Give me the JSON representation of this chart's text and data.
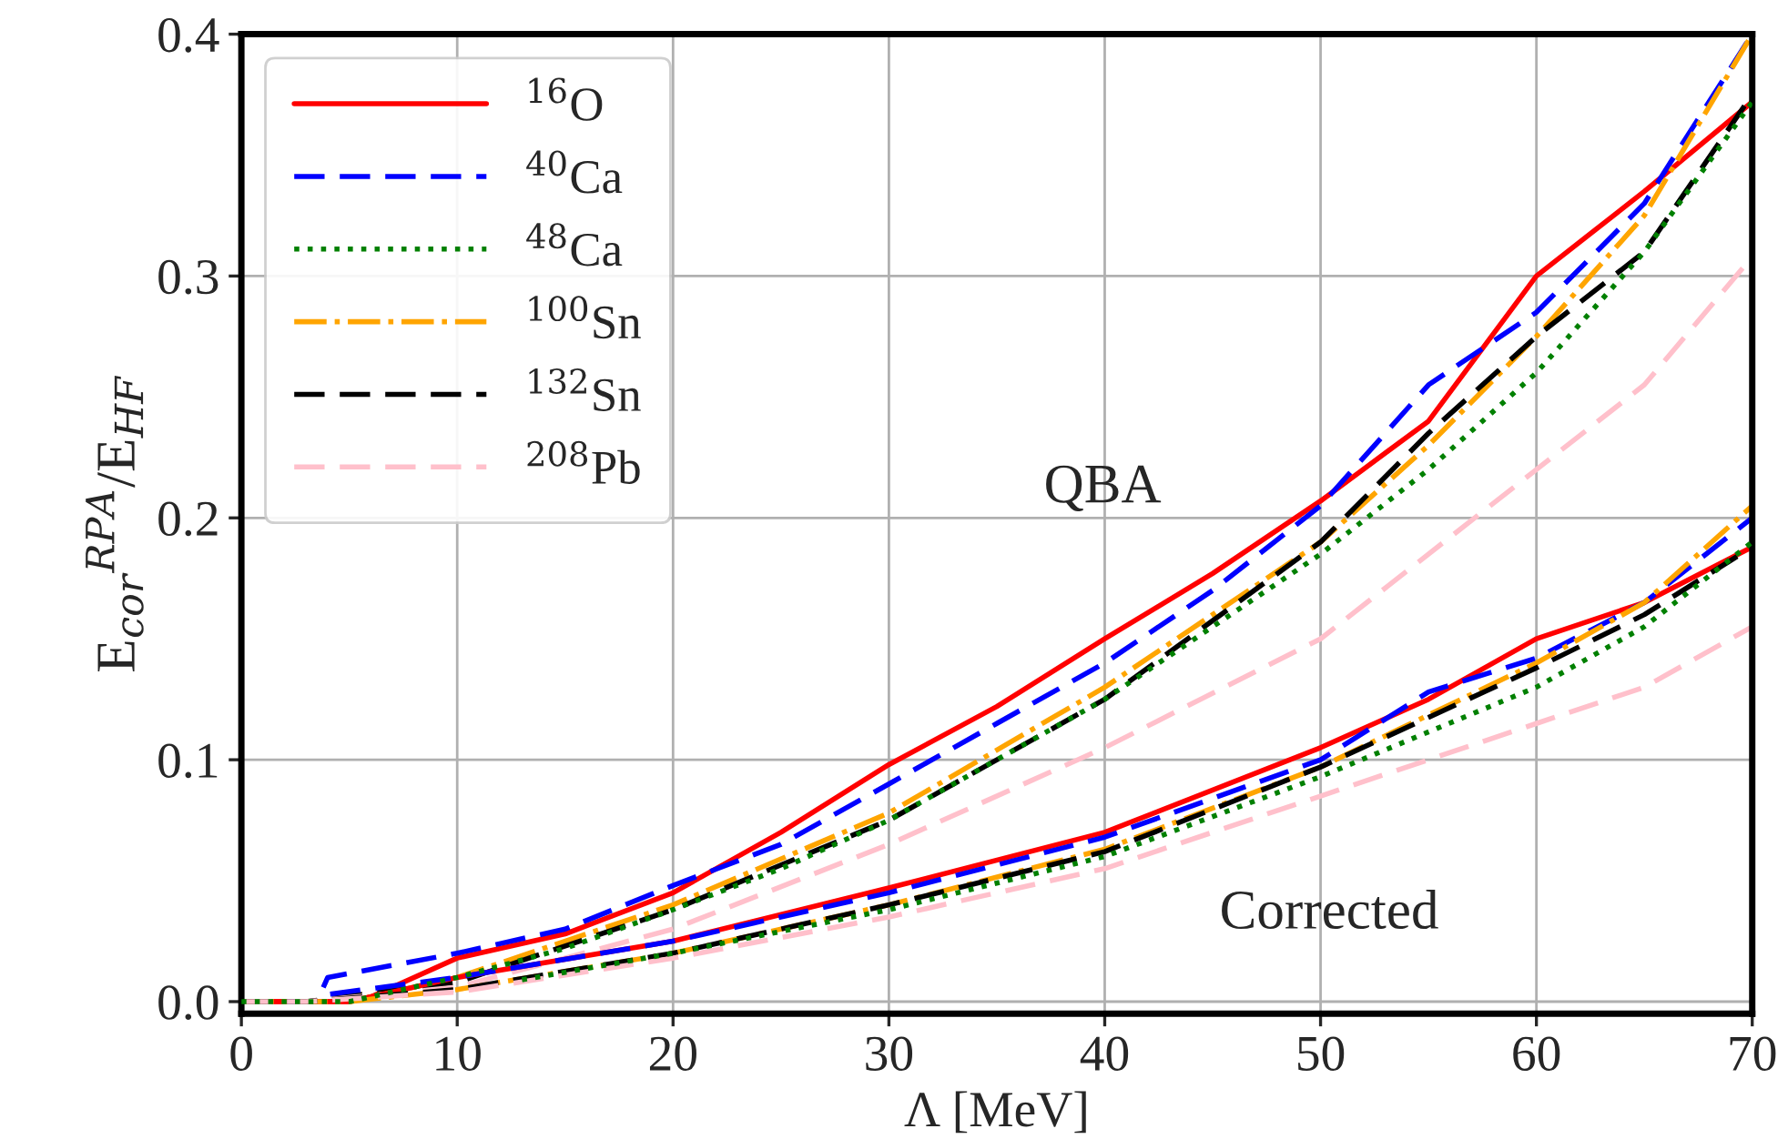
{
  "chart_data": {
    "type": "line",
    "xlabel": "Λ [MeV]",
    "ylabel": "E$_{cor}$$^{RPA}$/E$_{HF}$",
    "xlim": [
      0,
      70
    ],
    "ylim": [
      -0.005,
      0.4
    ],
    "xticks": [
      0,
      10,
      20,
      30,
      40,
      50,
      60,
      70
    ],
    "yticks": [
      {
        "value": 0,
        "label": "0.0"
      },
      {
        "value": 0.1,
        "label": "0.1"
      },
      {
        "value": 0.2,
        "label": "0.2"
      },
      {
        "value": 0.3,
        "label": "0.3"
      },
      {
        "value": 0.4,
        "label": "0.4"
      }
    ],
    "grid": true,
    "legend": "top left",
    "annotations": [
      "QBA",
      "Corrected"
    ],
    "series": [
      {
        "name": "$^{16}$O",
        "color": "#ff0000",
        "line_style": "solid",
        "x": [
          0,
          5,
          6,
          10,
          15,
          20,
          25,
          30,
          35,
          40,
          45,
          50,
          55,
          60,
          65,
          70
        ],
        "values": [
          0,
          0,
          0.002,
          0.018,
          0.028,
          0.045,
          0.07,
          0.098,
          0.122,
          0.15,
          0.177,
          0.207,
          0.24,
          0.3,
          0.335,
          0.372
        ]
      },
      {
        "name": "$^{40}$Ca",
        "color": "#0000ff",
        "line_style": "dashed",
        "x": [
          0,
          3.5,
          4,
          10,
          15,
          20,
          25,
          30,
          35,
          40,
          45,
          50,
          55,
          60,
          65,
          70
        ],
        "values": [
          0,
          0,
          0.01,
          0.02,
          0.03,
          0.048,
          0.065,
          0.09,
          0.115,
          0.14,
          0.17,
          0.205,
          0.255,
          0.285,
          0.33,
          0.4
        ]
      },
      {
        "name": "$^{48}$Ca",
        "color": "#008000",
        "line_style": "dotted",
        "x": [
          0,
          5,
          10,
          15,
          20,
          25,
          30,
          35,
          40,
          45,
          50,
          55,
          60,
          65,
          70
        ],
        "values": [
          0,
          0,
          0.01,
          0.022,
          0.038,
          0.055,
          0.075,
          0.1,
          0.125,
          0.155,
          0.185,
          0.22,
          0.26,
          0.31,
          0.372
        ]
      },
      {
        "name": "$^{100}$Sn",
        "color": "#ffa500",
        "line_style": "dashdot",
        "x": [
          0,
          5,
          10,
          20,
          30,
          40,
          50,
          55,
          60,
          65,
          70
        ],
        "values": [
          0,
          0,
          0.01,
          0.04,
          0.078,
          0.13,
          0.19,
          0.23,
          0.275,
          0.325,
          0.4
        ]
      },
      {
        "name": "$^{132}$Sn",
        "color": "#000000",
        "line_style": "dashed",
        "x": [
          0,
          3,
          10,
          20,
          30,
          40,
          50,
          55,
          60,
          65,
          70
        ],
        "values": [
          0,
          0,
          0.008,
          0.038,
          0.075,
          0.125,
          0.19,
          0.235,
          0.275,
          0.31,
          0.375
        ]
      },
      {
        "name": "$^{208}$Pb",
        "color": "#ffc0cb",
        "line_style": "dashed",
        "x": [
          0,
          3,
          10,
          20,
          30,
          40,
          50,
          60,
          65,
          70
        ],
        "values": [
          0,
          0,
          0.006,
          0.03,
          0.065,
          0.105,
          0.15,
          0.22,
          0.255,
          0.308
        ]
      },
      {
        "color": "#ff0000",
        "line_style": "solid",
        "x": [
          0,
          5,
          10,
          20,
          30,
          40,
          50,
          55,
          60,
          65,
          70
        ],
        "values": [
          0,
          0,
          0.01,
          0.025,
          0.047,
          0.07,
          0.105,
          0.125,
          0.15,
          0.165,
          0.188
        ]
      },
      {
        "color": "#0000ff",
        "line_style": "dashed",
        "x": [
          0,
          3.5,
          4,
          10,
          20,
          30,
          40,
          50,
          55,
          60,
          65,
          70
        ],
        "values": [
          0,
          0,
          0.003,
          0.01,
          0.025,
          0.045,
          0.068,
          0.1,
          0.128,
          0.142,
          0.165,
          0.2
        ]
      },
      {
        "color": "#008000",
        "line_style": "dotted",
        "x": [
          13,
          20,
          30,
          40,
          50,
          60,
          65,
          70
        ],
        "values": [
          0.009,
          0.02,
          0.038,
          0.06,
          0.093,
          0.13,
          0.155,
          0.19
        ]
      },
      {
        "color": "#ffa500",
        "line_style": "dashdot",
        "x": [
          0,
          5,
          10,
          20,
          30,
          40,
          50,
          60,
          65,
          70
        ],
        "values": [
          0,
          0,
          0.005,
          0.02,
          0.04,
          0.063,
          0.097,
          0.14,
          0.165,
          0.205
        ]
      },
      {
        "color": "#000000",
        "line_style": "dashed",
        "x": [
          0,
          3,
          10,
          20,
          30,
          40,
          50,
          60,
          65,
          70
        ],
        "values": [
          0,
          0,
          0.005,
          0.02,
          0.04,
          0.062,
          0.097,
          0.138,
          0.16,
          0.188
        ]
      },
      {
        "color": "#ffc0cb",
        "line_style": "dashed",
        "x": [
          0,
          3,
          10,
          20,
          30,
          40,
          50,
          60,
          65,
          70
        ],
        "values": [
          0,
          0,
          0.004,
          0.018,
          0.035,
          0.055,
          0.085,
          0.115,
          0.13,
          0.155
        ]
      }
    ]
  }
}
